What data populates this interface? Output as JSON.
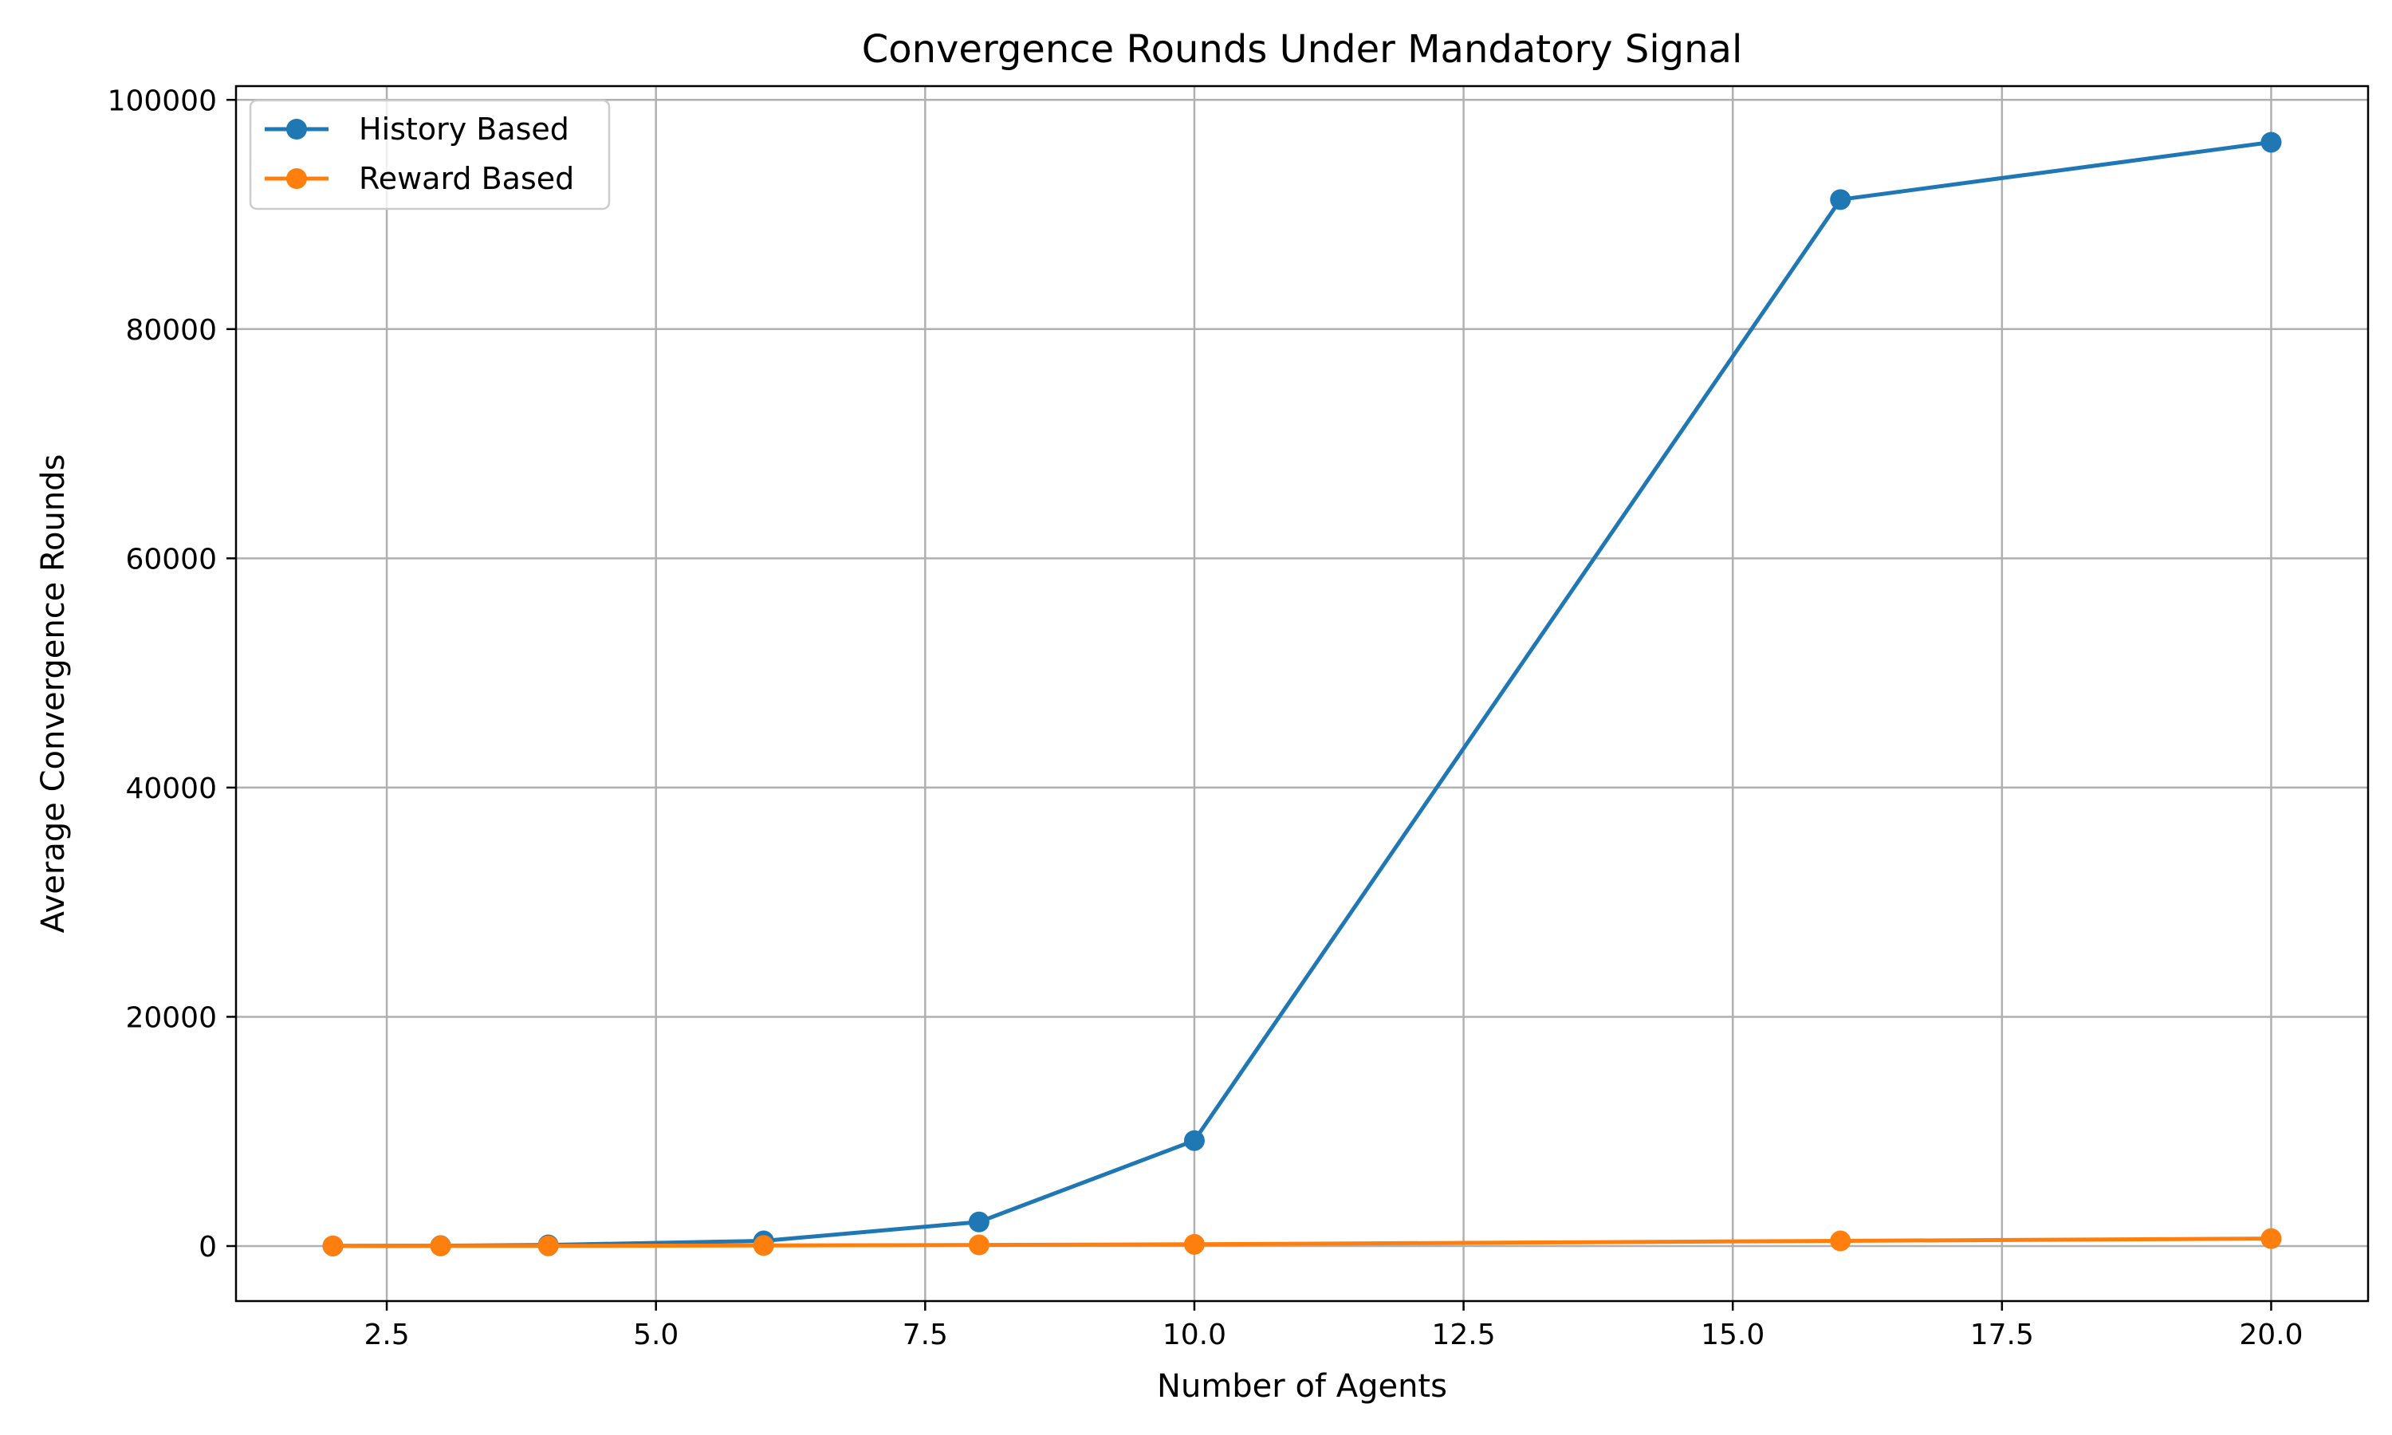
{
  "chart_data": {
    "type": "line",
    "title": "Convergence Rounds Under Mandatory Signal",
    "xlabel": "Number of Agents",
    "ylabel": "Average Convergence Rounds",
    "xlim": [
      1.1,
      20.9
    ],
    "ylim": [
      -4800,
      101200
    ],
    "xticks": [
      2.5,
      5.0,
      7.5,
      10.0,
      12.5,
      15.0,
      17.5,
      20.0
    ],
    "xtick_labels": [
      "2.5",
      "5.0",
      "7.5",
      "10.0",
      "12.5",
      "15.0",
      "17.5",
      "20.0"
    ],
    "yticks": [
      0,
      20000,
      40000,
      60000,
      80000,
      100000
    ],
    "ytick_labels": [
      "0",
      "20000",
      "40000",
      "60000",
      "80000",
      "100000"
    ],
    "grid": true,
    "legend_position": "upper-left",
    "x": [
      2,
      3,
      4,
      6,
      8,
      10,
      16,
      20
    ],
    "series": [
      {
        "name": "History Based",
        "color": "#1f77b4",
        "marker": "circle",
        "values": [
          10,
          30,
          100,
          450,
          2100,
          9200,
          91300,
          96300
        ]
      },
      {
        "name": "Reward Based",
        "color": "#ff7f0e",
        "marker": "circle",
        "values": [
          5,
          10,
          20,
          50,
          100,
          150,
          450,
          650
        ]
      }
    ]
  }
}
